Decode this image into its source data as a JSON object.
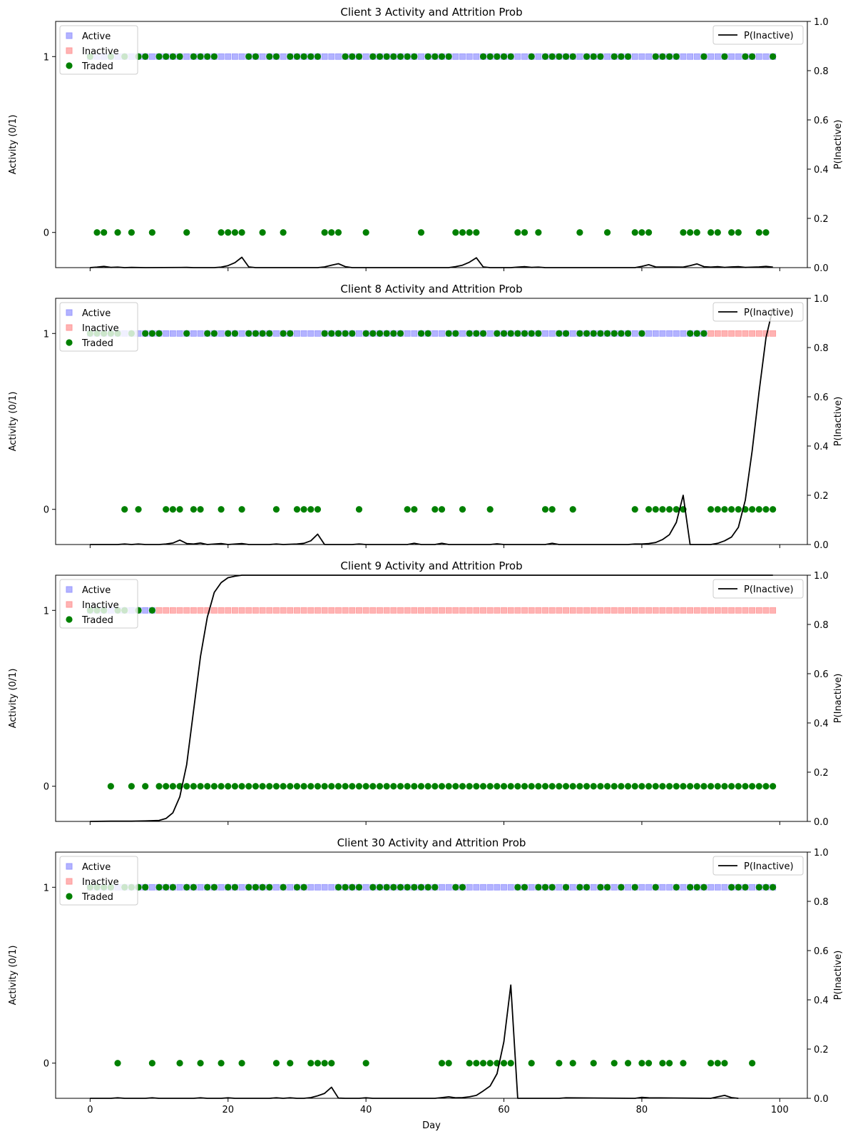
{
  "figure": {
    "xlabel": "Day",
    "ylabel_left": "Activity (0/1)",
    "ylabel_right": "P(Inactive)"
  },
  "legend_left": [
    "Active",
    "Inactive",
    "Traded"
  ],
  "legend_right": [
    "P(Inactive)"
  ],
  "colors": {
    "active": "#9999ff",
    "inactive": "#ff9999",
    "traded": "#008000",
    "prob_line": "#000000"
  },
  "chart_data": [
    {
      "type": "scatter+line",
      "title": "Client 3 Activity and Attrition Prob",
      "xlabel": "",
      "ylabel": "Activity (0/1)",
      "y2label": "P(Inactive)",
      "xlim": [
        -5,
        104
      ],
      "ylim": [
        -0.2,
        1.2
      ],
      "y2lim": [
        0,
        1
      ],
      "xticks": [
        0,
        20,
        40,
        60,
        80,
        100
      ],
      "yticks": [
        0,
        1
      ],
      "y2ticks": [
        0.0,
        0.2,
        0.4,
        0.6,
        0.8,
        1.0
      ],
      "inactive_from": null,
      "no_trade_days": [
        1,
        2,
        4,
        6,
        9,
        14,
        19,
        20,
        21,
        22,
        25,
        28,
        34,
        35,
        36,
        40,
        48,
        53,
        54,
        55,
        56,
        62,
        63,
        65,
        71,
        75,
        79,
        80,
        81,
        86,
        87,
        88,
        90,
        91,
        93,
        94,
        97,
        98
      ],
      "prob": [
        [
          0,
          0
        ],
        [
          1,
          0.002
        ],
        [
          2,
          0.005
        ],
        [
          3,
          0.001
        ],
        [
          4,
          0.002
        ],
        [
          5,
          0
        ],
        [
          6,
          0.001
        ],
        [
          8,
          0
        ],
        [
          14,
          0.001
        ],
        [
          15,
          0
        ],
        [
          18,
          0
        ],
        [
          19,
          0.002
        ],
        [
          20,
          0.008
        ],
        [
          21,
          0.02
        ],
        [
          22,
          0.042
        ],
        [
          23,
          0.003
        ],
        [
          24,
          0
        ],
        [
          33,
          0
        ],
        [
          34,
          0.003
        ],
        [
          35,
          0.01
        ],
        [
          36,
          0.016
        ],
        [
          37,
          0.004
        ],
        [
          38,
          0
        ],
        [
          52,
          0
        ],
        [
          53,
          0.004
        ],
        [
          54,
          0.01
        ],
        [
          55,
          0.022
        ],
        [
          56,
          0.04
        ],
        [
          57,
          0.003
        ],
        [
          58,
          0
        ],
        [
          61,
          0
        ],
        [
          62,
          0.002
        ],
        [
          63,
          0.004
        ],
        [
          64,
          0.001
        ],
        [
          65,
          0.002
        ],
        [
          66,
          0
        ],
        [
          79,
          0
        ],
        [
          80,
          0.005
        ],
        [
          81,
          0.012
        ],
        [
          82,
          0.003
        ],
        [
          86,
          0.002
        ],
        [
          87,
          0.008
        ],
        [
          88,
          0.015
        ],
        [
          89,
          0.004
        ],
        [
          90,
          0.002
        ],
        [
          91,
          0.004
        ],
        [
          92,
          0.001
        ],
        [
          93,
          0.003
        ],
        [
          94,
          0.004
        ],
        [
          95,
          0.001
        ],
        [
          97,
          0.003
        ],
        [
          98,
          0.005
        ],
        [
          99,
          0.002
        ]
      ]
    },
    {
      "type": "scatter+line",
      "title": "Client 8 Activity and Attrition Prob",
      "xlabel": "",
      "ylabel": "Activity (0/1)",
      "y2label": "P(Inactive)",
      "xlim": [
        -5,
        104
      ],
      "ylim": [
        -0.2,
        1.2
      ],
      "y2lim": [
        0,
        1
      ],
      "xticks": [
        0,
        20,
        40,
        60,
        80,
        100
      ],
      "yticks": [
        0,
        1
      ],
      "y2ticks": [
        0.0,
        0.2,
        0.4,
        0.6,
        0.8,
        1.0
      ],
      "inactive_from": 90,
      "no_trade_days": [
        5,
        7,
        11,
        12,
        13,
        15,
        16,
        19,
        22,
        27,
        30,
        31,
        32,
        33,
        39,
        46,
        47,
        50,
        51,
        54,
        58,
        66,
        67,
        70,
        79,
        81,
        82,
        83,
        84,
        85,
        86,
        90,
        91,
        92,
        93,
        94,
        95,
        96,
        97,
        98,
        99
      ],
      "prob": [
        [
          0,
          0
        ],
        [
          4,
          0
        ],
        [
          5,
          0.002
        ],
        [
          6,
          0
        ],
        [
          7,
          0.002
        ],
        [
          8,
          0
        ],
        [
          10,
          0
        ],
        [
          11,
          0.002
        ],
        [
          12,
          0.006
        ],
        [
          13,
          0.018
        ],
        [
          14,
          0.004
        ],
        [
          15,
          0.002
        ],
        [
          16,
          0.006
        ],
        [
          17,
          0
        ],
        [
          19,
          0.004
        ],
        [
          20,
          0
        ],
        [
          22,
          0.004
        ],
        [
          23,
          0
        ],
        [
          26,
          0
        ],
        [
          27,
          0.002
        ],
        [
          28,
          0
        ],
        [
          30,
          0.002
        ],
        [
          31,
          0.005
        ],
        [
          32,
          0.015
        ],
        [
          33,
          0.042
        ],
        [
          34,
          0
        ],
        [
          38,
          0
        ],
        [
          39,
          0.002
        ],
        [
          40,
          0
        ],
        [
          46,
          0
        ],
        [
          47,
          0.005
        ],
        [
          48,
          0
        ],
        [
          50,
          0
        ],
        [
          51,
          0.005
        ],
        [
          52,
          0
        ],
        [
          58,
          0
        ],
        [
          59,
          0.003
        ],
        [
          60,
          0
        ],
        [
          66,
          0
        ],
        [
          67,
          0.005
        ],
        [
          68,
          0
        ],
        [
          78,
          0
        ],
        [
          79,
          0.002
        ],
        [
          80,
          0.002
        ],
        [
          81,
          0.004
        ],
        [
          82,
          0.008
        ],
        [
          83,
          0.02
        ],
        [
          84,
          0.04
        ],
        [
          85,
          0.09
        ],
        [
          86,
          0.2
        ],
        [
          87,
          0
        ],
        [
          90,
          0
        ],
        [
          91,
          0.005
        ],
        [
          92,
          0.015
        ],
        [
          93,
          0.03
        ],
        [
          94,
          0.07
        ],
        [
          95,
          0.18
        ],
        [
          96,
          0.38
        ],
        [
          97,
          0.62
        ],
        [
          98,
          0.84
        ],
        [
          99,
          0.96
        ]
      ]
    },
    {
      "type": "scatter+line",
      "title": "Client 9 Activity and Attrition Prob",
      "xlabel": "",
      "ylabel": "Activity (0/1)",
      "y2label": "P(Inactive)",
      "xlim": [
        -5,
        104
      ],
      "ylim": [
        -0.2,
        1.2
      ],
      "y2lim": [
        0,
        1
      ],
      "xticks": [
        0,
        20,
        40,
        60,
        80,
        100
      ],
      "yticks": [
        0,
        1
      ],
      "y2ticks": [
        0.0,
        0.2,
        0.4,
        0.6,
        0.8,
        1.0
      ],
      "inactive_from": 10,
      "no_trade_days": [
        3,
        6,
        8,
        10,
        11,
        12,
        13,
        14,
        15,
        16,
        17,
        18,
        19,
        20,
        21,
        22,
        23,
        24,
        25,
        26,
        27,
        28,
        29,
        30,
        31,
        32,
        33,
        34,
        35,
        36,
        37,
        38,
        39,
        40,
        41,
        42,
        43,
        44,
        45,
        46,
        47,
        48,
        49,
        50,
        51,
        52,
        53,
        54,
        55,
        56,
        57,
        58,
        59,
        60,
        61,
        62,
        63,
        64,
        65,
        66,
        67,
        68,
        69,
        70,
        71,
        72,
        73,
        74,
        75,
        76,
        77,
        78,
        79,
        80,
        81,
        82,
        83,
        84,
        85,
        86,
        87,
        88,
        89,
        90,
        91,
        92,
        93,
        94,
        95,
        96,
        97,
        98,
        99
      ],
      "prob": [
        [
          0,
          0
        ],
        [
          3,
          0.001
        ],
        [
          6,
          0.001
        ],
        [
          8,
          0.002
        ],
        [
          10,
          0.004
        ],
        [
          11,
          0.012
        ],
        [
          12,
          0.035
        ],
        [
          13,
          0.1
        ],
        [
          14,
          0.23
        ],
        [
          15,
          0.45
        ],
        [
          16,
          0.67
        ],
        [
          17,
          0.83
        ],
        [
          18,
          0.93
        ],
        [
          19,
          0.97
        ],
        [
          20,
          0.99
        ],
        [
          21,
          0.996
        ],
        [
          22,
          1.0
        ],
        [
          99,
          1.0
        ]
      ]
    },
    {
      "type": "scatter+line",
      "title": "Client 30 Activity and Attrition Prob",
      "xlabel": "Day",
      "ylabel": "Activity (0/1)",
      "y2label": "P(Inactive)",
      "xlim": [
        -5,
        104
      ],
      "ylim": [
        -0.2,
        1.2
      ],
      "y2lim": [
        0,
        1
      ],
      "xticks": [
        0,
        20,
        40,
        60,
        80,
        100
      ],
      "yticks": [
        0,
        1
      ],
      "y2ticks": [
        0.0,
        0.2,
        0.4,
        0.6,
        0.8,
        1.0
      ],
      "inactive_from": null,
      "no_trade_days": [
        4,
        9,
        13,
        16,
        19,
        22,
        27,
        29,
        32,
        33,
        34,
        35,
        40,
        51,
        52,
        55,
        56,
        57,
        58,
        59,
        60,
        61,
        64,
        68,
        70,
        73,
        76,
        78,
        80,
        81,
        83,
        84,
        86,
        90,
        91,
        92,
        96
      ],
      "prob": [
        [
          0,
          0
        ],
        [
          3,
          0
        ],
        [
          4,
          0.002
        ],
        [
          5,
          0
        ],
        [
          8,
          0
        ],
        [
          9,
          0.002
        ],
        [
          10,
          0
        ],
        [
          15,
          0
        ],
        [
          16,
          0.002
        ],
        [
          17,
          0
        ],
        [
          19,
          0
        ],
        [
          20,
          0.002
        ],
        [
          21,
          0
        ],
        [
          26,
          0
        ],
        [
          27,
          0.002
        ],
        [
          28,
          0
        ],
        [
          29,
          0.002
        ],
        [
          30,
          0
        ],
        [
          31,
          0
        ],
        [
          32,
          0.003
        ],
        [
          33,
          0.01
        ],
        [
          34,
          0.02
        ],
        [
          35,
          0.045
        ],
        [
          36,
          0.001
        ],
        [
          37,
          0
        ],
        [
          39,
          0
        ],
        [
          40,
          0.002
        ],
        [
          41,
          0
        ],
        [
          50,
          0
        ],
        [
          51,
          0.003
        ],
        [
          52,
          0.006
        ],
        [
          53,
          0.002
        ],
        [
          54,
          0.003
        ],
        [
          55,
          0.006
        ],
        [
          56,
          0.012
        ],
        [
          57,
          0.03
        ],
        [
          58,
          0.05
        ],
        [
          59,
          0.1
        ],
        [
          60,
          0.23
        ],
        [
          61,
          0.46
        ],
        [
          62,
          0
        ],
        [
          68,
          0
        ],
        [
          69,
          0.002
        ],
        [
          79,
          0
        ],
        [
          80,
          0.004
        ],
        [
          81,
          0.002
        ],
        [
          90,
          0
        ],
        [
          91,
          0.006
        ],
        [
          92,
          0.012
        ],
        [
          93,
          0.003
        ],
        [
          94,
          0
        ]
      ]
    }
  ]
}
